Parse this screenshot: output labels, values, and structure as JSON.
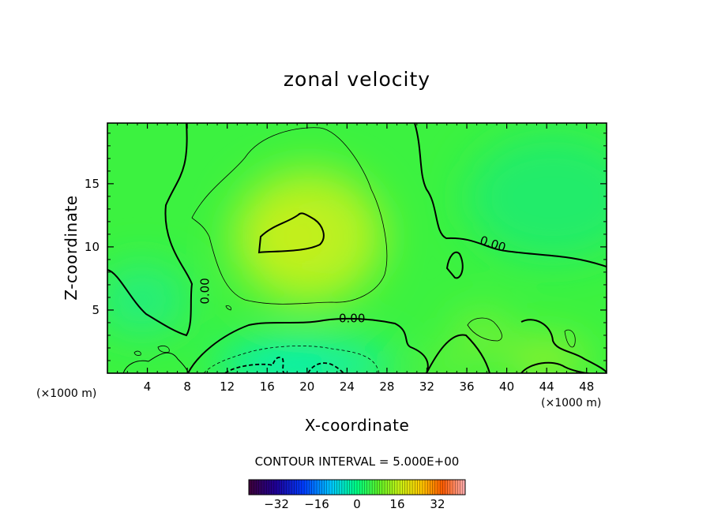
{
  "chart_data": {
    "type": "heatmap",
    "title": "zonal velocity",
    "xlabel": "X-coordinate",
    "ylabel": "Z-coordinate",
    "x_unit_left": "(×1000 m)",
    "x_unit_right": "(×1000 m)",
    "xlim": [
      0,
      50
    ],
    "ylim": [
      0,
      19.8
    ],
    "x_ticks": [
      "4",
      "8",
      "12",
      "16",
      "20",
      "24",
      "28",
      "32",
      "36",
      "40",
      "44",
      "48"
    ],
    "x_tick_values": [
      4,
      8,
      12,
      16,
      20,
      24,
      28,
      32,
      36,
      40,
      44,
      48
    ],
    "y_ticks": [
      "5",
      "10",
      "15"
    ],
    "y_tick_values": [
      5,
      10,
      15
    ],
    "field_samples": [
      {
        "x": 2,
        "z": 15,
        "value": 2
      },
      {
        "x": 20,
        "z": 12,
        "value": 9
      },
      {
        "x": 19,
        "z": 2,
        "value": -6
      },
      {
        "x": 4,
        "z": 6,
        "value": -2
      },
      {
        "x": 44,
        "z": 1,
        "value": 6
      },
      {
        "x": 42,
        "z": 14,
        "value": -1
      }
    ],
    "contour_labels": [
      {
        "text": "0.00",
        "x": 24.5,
        "z": 4.3,
        "angle": 0
      },
      {
        "text": "0.00",
        "x": 38.6,
        "z": 10.2,
        "angle": 18
      },
      {
        "text": "0.00",
        "x": 9.8,
        "z": 6.5,
        "angle": -90
      }
    ],
    "colorbar": {
      "range": [
        -43,
        43
      ],
      "ticks": [
        "−32",
        "−16",
        "0",
        "16",
        "32"
      ],
      "tick_values": [
        -32,
        -16,
        0,
        16,
        32
      ]
    },
    "contour_interval_label": "CONTOUR INTERVAL = 5.000E+00"
  }
}
